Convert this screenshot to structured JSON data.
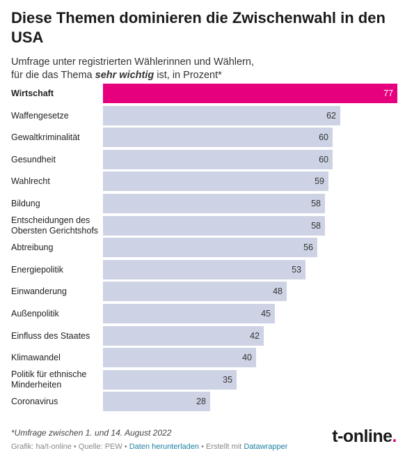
{
  "header": {
    "title": "Diese Themen dominieren die Zwischenwahl in den USA",
    "subtitle_line1": "Umfrage unter registrierten Wählerinnen und Wählern,",
    "subtitle_line2_prefix": "für die das Thema ",
    "subtitle_line2_emph": "sehr wichtig",
    "subtitle_line2_suffix": " ist, in Prozent*"
  },
  "chart_data": {
    "type": "bar",
    "orientation": "horizontal",
    "categories": [
      "Wirtschaft",
      "Waffengesetze",
      "Gewaltkriminalität",
      "Gesundheit",
      "Wahlrecht",
      "Bildung",
      "Entscheidungen des Obersten Gerichtshofs",
      "Abtreibung",
      "Energiepolitik",
      "Einwanderung",
      "Außenpolitik",
      "Einfluss des Staates",
      "Klimawandel",
      "Politik für ethnische Minderheiten",
      "Coronavirus"
    ],
    "values": [
      77,
      62,
      60,
      60,
      59,
      58,
      58,
      56,
      53,
      48,
      45,
      42,
      40,
      35,
      28
    ],
    "xlim": [
      0,
      77
    ],
    "highlight_index": 0,
    "colors": {
      "highlight": "#e6007e",
      "default": "#cdd3e4"
    }
  },
  "footer": {
    "footnote": "*Umfrage zwischen 1. und 14. August 2022",
    "source_prefix": "Grafik: ha/t-online • Quelle: PEW • ",
    "download_link": "Daten herunterladen",
    "source_middle": " • Erstellt mit ",
    "datawrapper_link": "Datawrapper",
    "logo_text": "t-online",
    "logo_dot": "."
  }
}
